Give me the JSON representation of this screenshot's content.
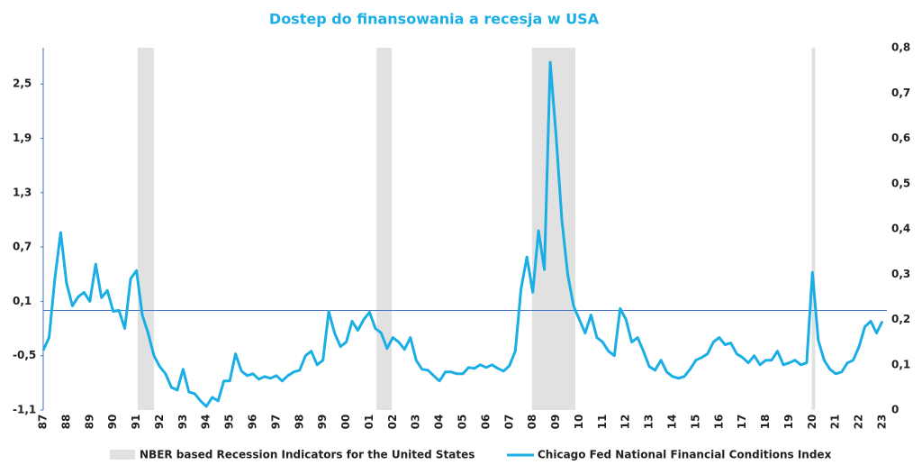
{
  "chart_data": {
    "type": "line",
    "title": "Dostep do finansowania a recesja w USA",
    "series": [
      {
        "name": "NBER based Recession Indicators for the United States",
        "type": "band",
        "axis": "y2",
        "color": "#e1e1e1",
        "starts": [
          1991.05,
          2001.3,
          2007.97,
          2019.97
        ],
        "ends": [
          1991.75,
          2001.95,
          2009.83,
          2020.12
        ],
        "values": [
          0.8,
          0.8,
          0.8,
          0.8
        ]
      },
      {
        "name": "Chicago Fed National Financial Conditions Index",
        "type": "line",
        "color": "#1aaee5",
        "x": [
          1987,
          1987.25,
          1987.5,
          1987.75,
          1988,
          1988.25,
          1988.5,
          1988.75,
          1989,
          1989.25,
          1989.5,
          1989.75,
          1990,
          1990.25,
          1990.5,
          1990.75,
          1991,
          1991.25,
          1991.5,
          1991.75,
          1992,
          1992.25,
          1992.5,
          1992.75,
          1993,
          1993.25,
          1993.5,
          1993.75,
          1994,
          1994.25,
          1994.5,
          1994.75,
          1995,
          1995.25,
          1995.5,
          1995.75,
          1996,
          1996.25,
          1996.5,
          1996.75,
          1997,
          1997.25,
          1997.5,
          1997.75,
          1998,
          1998.25,
          1998.5,
          1998.75,
          1999,
          1999.25,
          1999.5,
          1999.75,
          2000,
          2000.25,
          2000.5,
          2000.75,
          2001,
          2001.25,
          2001.5,
          2001.75,
          2002,
          2002.25,
          2002.5,
          2002.75,
          2003,
          2003.25,
          2003.5,
          2003.75,
          2004,
          2004.25,
          2004.5,
          2004.75,
          2005,
          2005.25,
          2005.5,
          2005.75,
          2006,
          2006.25,
          2006.5,
          2006.75,
          2007,
          2007.25,
          2007.5,
          2007.75,
          2008,
          2008.25,
          2008.5,
          2008.75,
          2009,
          2009.25,
          2009.5,
          2009.75,
          2010,
          2010.25,
          2010.5,
          2010.75,
          2011,
          2011.25,
          2011.5,
          2011.75,
          2012,
          2012.25,
          2012.5,
          2012.75,
          2013,
          2013.25,
          2013.5,
          2013.75,
          2014,
          2014.25,
          2014.5,
          2014.75,
          2015,
          2015.25,
          2015.5,
          2015.75,
          2016,
          2016.25,
          2016.5,
          2016.75,
          2017,
          2017.25,
          2017.5,
          2017.75,
          2018,
          2018.25,
          2018.5,
          2018.75,
          2019,
          2019.25,
          2019.5,
          2019.75,
          2020,
          2020.25,
          2020.5,
          2020.75,
          2021,
          2021.25,
          2021.5,
          2021.75,
          2022,
          2022.25,
          2022.5,
          2022.75,
          2023
        ],
        "values": [
          -0.44,
          -0.3,
          0.35,
          0.86,
          0.3,
          0.05,
          0.15,
          0.2,
          0.1,
          0.51,
          0.14,
          0.22,
          -0.01,
          0,
          -0.2,
          0.35,
          0.44,
          -0.05,
          -0.25,
          -0.5,
          -0.62,
          -0.7,
          -0.85,
          -0.88,
          -0.65,
          -0.9,
          -0.92,
          -1,
          -1.06,
          -0.96,
          -1,
          -0.78,
          -0.78,
          -0.48,
          -0.67,
          -0.72,
          -0.7,
          -0.76,
          -0.73,
          -0.75,
          -0.72,
          -0.78,
          -0.72,
          -0.68,
          -0.66,
          -0.5,
          -0.45,
          -0.6,
          -0.55,
          -0.01,
          -0.25,
          -0.4,
          -0.35,
          -0.12,
          -0.22,
          -0.1,
          -0.02,
          -0.2,
          -0.25,
          -0.42,
          -0.3,
          -0.35,
          -0.43,
          -0.3,
          -0.55,
          -0.65,
          -0.66,
          -0.72,
          -0.78,
          -0.68,
          -0.68,
          -0.7,
          -0.7,
          -0.63,
          -0.64,
          -0.6,
          -0.63,
          -0.6,
          -0.64,
          -0.67,
          -0.61,
          -0.45,
          0.24,
          0.59,
          0.2,
          0.88,
          0.45,
          2.74,
          1.93,
          1,
          0.4,
          0.05,
          -0.1,
          -0.25,
          -0.05,
          -0.3,
          -0.35,
          -0.45,
          -0.5,
          0.02,
          -0.1,
          -0.35,
          -0.3,
          -0.45,
          -0.62,
          -0.66,
          -0.55,
          -0.68,
          -0.73,
          -0.75,
          -0.73,
          -0.65,
          -0.55,
          -0.52,
          -0.48,
          -0.35,
          -0.3,
          -0.38,
          -0.36,
          -0.48,
          -0.52,
          -0.58,
          -0.5,
          -0.6,
          -0.55,
          -0.55,
          -0.45,
          -0.6,
          -0.58,
          -0.55,
          -0.6,
          -0.58,
          0.42,
          -0.33,
          -0.55,
          -0.65,
          -0.7,
          -0.68,
          -0.58,
          -0.55,
          -0.4,
          -0.18,
          -0.12,
          -0.25,
          -0.12
        ]
      }
    ],
    "xlim": [
      1987,
      2023
    ],
    "xticks": [
      {
        "value": 1987,
        "label": "87"
      },
      {
        "value": 1988,
        "label": "88"
      },
      {
        "value": 1989,
        "label": "89"
      },
      {
        "value": 1990,
        "label": "90"
      },
      {
        "value": 1991,
        "label": "91"
      },
      {
        "value": 1992,
        "label": "92"
      },
      {
        "value": 1993,
        "label": "93"
      },
      {
        "value": 1994,
        "label": "94"
      },
      {
        "value": 1995,
        "label": "95"
      },
      {
        "value": 1996,
        "label": "96"
      },
      {
        "value": 1997,
        "label": "97"
      },
      {
        "value": 1998,
        "label": "98"
      },
      {
        "value": 1999,
        "label": "99"
      },
      {
        "value": 2000,
        "label": "00"
      },
      {
        "value": 2001,
        "label": "01"
      },
      {
        "value": 2002,
        "label": "02"
      },
      {
        "value": 2003,
        "label": "03"
      },
      {
        "value": 2004,
        "label": "04"
      },
      {
        "value": 2005,
        "label": "05"
      },
      {
        "value": 2006,
        "label": "06"
      },
      {
        "value": 2007,
        "label": "07"
      },
      {
        "value": 2008,
        "label": "08"
      },
      {
        "value": 2009,
        "label": "09"
      },
      {
        "value": 2010,
        "label": "10"
      },
      {
        "value": 2011,
        "label": "11"
      },
      {
        "value": 2012,
        "label": "12"
      },
      {
        "value": 2013,
        "label": "13"
      },
      {
        "value": 2014,
        "label": "14"
      },
      {
        "value": 2015,
        "label": "15"
      },
      {
        "value": 2016,
        "label": "16"
      },
      {
        "value": 2017,
        "label": "17"
      },
      {
        "value": 2018,
        "label": "18"
      },
      {
        "value": 2019,
        "label": "19"
      },
      {
        "value": 2020,
        "label": "20"
      },
      {
        "value": 2021,
        "label": "21"
      },
      {
        "value": 2022,
        "label": "22"
      },
      {
        "value": 2023,
        "label": "23"
      }
    ],
    "ylim": [
      -1.1,
      2.9
    ],
    "yticks": [
      {
        "value": -1.1,
        "label": "-1,1"
      },
      {
        "value": -0.5,
        "label": "-0,5"
      },
      {
        "value": 0.1,
        "label": "0,1"
      },
      {
        "value": 0.7,
        "label": "0,7"
      },
      {
        "value": 1.3,
        "label": "1,3"
      },
      {
        "value": 1.9,
        "label": "1,9"
      },
      {
        "value": 2.5,
        "label": "2,5"
      }
    ],
    "y2lim": [
      0,
      0.8
    ],
    "y2ticks": [
      0,
      {
        "value": 0.1,
        "label": "0,1"
      },
      {
        "value": 0.2,
        "label": "0,2"
      },
      {
        "value": 0.3,
        "label": "0,3"
      },
      {
        "value": 0.4,
        "label": "0,4"
      },
      {
        "value": 0.5,
        "label": "0,5"
      },
      {
        "value": 0.6,
        "label": "0,6"
      },
      {
        "value": 0.7,
        "label": "0,7"
      },
      {
        "value": 0.8,
        "label": "0,8"
      }
    ],
    "legend": "bottom"
  }
}
